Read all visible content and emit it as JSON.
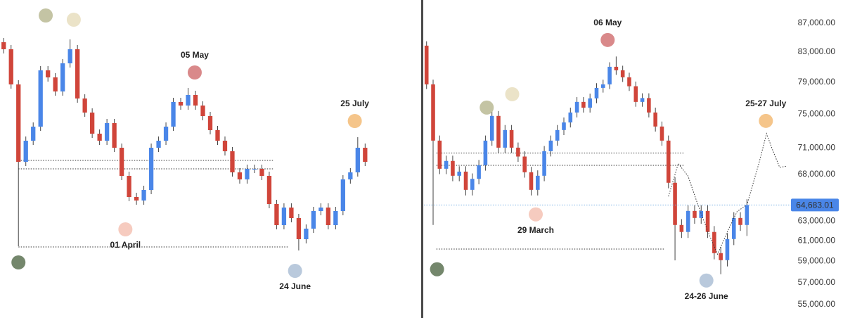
{
  "chart_data": [
    {
      "type": "candlestick",
      "xlim": [
        -0.5,
        56.5
      ],
      "ylim": [
        0,
        452
      ],
      "log_scale": false,
      "up_color": "#4a86e8",
      "down_color": "#d0453a",
      "open": [
        392,
        382,
        332,
        222,
        252,
        272,
        352,
        342,
        322,
        362,
        382,
        312,
        292,
        262,
        252,
        277,
        242,
        202,
        172,
        167,
        182,
        242,
        252,
        272,
        307,
        302,
        317,
        302,
        287,
        267,
        252,
        237,
        207,
        197,
        212,
        212,
        202,
        162,
        132,
        157,
        142,
        112,
        127,
        152,
        157,
        132,
        152,
        197,
        207,
        242
      ],
      "high": [
        398,
        388,
        338,
        258,
        278,
        358,
        358,
        348,
        368,
        396,
        388,
        318,
        298,
        268,
        283,
        283,
        248,
        208,
        178,
        188,
        248,
        258,
        278,
        313,
        313,
        327,
        323,
        308,
        293,
        273,
        258,
        243,
        213,
        218,
        218,
        218,
        208,
        168,
        163,
        163,
        148,
        133,
        158,
        163,
        163,
        158,
        203,
        213,
        257,
        248
      ],
      "low": [
        376,
        326,
        102,
        216,
        246,
        266,
        336,
        316,
        316,
        356,
        306,
        286,
        256,
        246,
        246,
        236,
        196,
        166,
        161,
        161,
        176,
        236,
        246,
        266,
        296,
        296,
        296,
        281,
        261,
        246,
        231,
        201,
        191,
        191,
        206,
        196,
        156,
        126,
        126,
        136,
        96,
        106,
        121,
        146,
        126,
        126,
        146,
        191,
        201,
        216
      ],
      "close": [
        382,
        332,
        222,
        252,
        272,
        352,
        342,
        322,
        362,
        382,
        312,
        292,
        262,
        252,
        277,
        242,
        202,
        172,
        167,
        182,
        242,
        252,
        272,
        307,
        302,
        317,
        302,
        287,
        267,
        252,
        237,
        207,
        197,
        212,
        212,
        202,
        162,
        132,
        157,
        142,
        112,
        127,
        152,
        157,
        132,
        152,
        197,
        207,
        242,
        222
      ],
      "levels": [
        {
          "value": 224,
          "from": 2,
          "to": 36.5
        },
        {
          "value": 212,
          "from": 2,
          "to": 36.5
        },
        {
          "value": 101,
          "from": 2,
          "to": 38.6
        }
      ],
      "annotations": [
        {
          "x": 5.7,
          "y": 430,
          "color": "#c4c4a4"
        },
        {
          "x": 9.5,
          "y": 424,
          "color": "#ebe3c8"
        },
        {
          "x": 2,
          "y": 79,
          "color": "#74876c"
        },
        {
          "label": "05 May",
          "x": 25.9,
          "y": 349,
          "color": "#d9898a"
        },
        {
          "label": "01 April",
          "x": 16.5,
          "y": 126,
          "color": "#f6cbbf"
        },
        {
          "label": "24 June",
          "x": 39.5,
          "y": 67,
          "color": "#b9c9dc"
        },
        {
          "label": "25 July",
          "x": 47.6,
          "y": 280,
          "color": "#f5c58a"
        }
      ]
    },
    {
      "type": "candlestick",
      "xlim": [
        -0.4,
        55.2
      ],
      "ylim": [
        53800,
        90350
      ],
      "log_scale": true,
      "up_color": "#4a86e8",
      "down_color": "#d0453a",
      "yticks": [
        {
          "value": 87000,
          "label": "87,000.00"
        },
        {
          "value": 83000,
          "label": "83,000.00"
        },
        {
          "value": 79000,
          "label": "79,000.00"
        },
        {
          "value": 75000,
          "label": "75,000.00"
        },
        {
          "value": 71000,
          "label": "71,000.00"
        },
        {
          "value": 68000,
          "label": "68,000.00"
        },
        {
          "value": 63000,
          "label": "63,000.00"
        },
        {
          "value": 61000,
          "label": "61,000.00"
        },
        {
          "value": 59000,
          "label": "59,000.00"
        },
        {
          "value": 57000,
          "label": "57,000.00"
        },
        {
          "value": 55000,
          "label": "55,000.00"
        }
      ],
      "open": [
        83870,
        78740,
        71840,
        68620,
        69500,
        67840,
        68300,
        66300,
        67500,
        69010,
        71840,
        74790,
        71020,
        73090,
        71020,
        70000,
        68230,
        66300,
        67840,
        70610,
        71840,
        73090,
        74000,
        75210,
        76520,
        75800,
        76960,
        78290,
        78740,
        81030,
        80570,
        79650,
        78500,
        76520,
        77000,
        75210,
        73510,
        71840,
        67070,
        62610,
        61900,
        64060,
        63330,
        64060,
        61900,
        59800,
        59120,
        61190,
        63330,
        62610
      ],
      "high": [
        84470,
        79340,
        72440,
        70100,
        70100,
        68900,
        68900,
        68100,
        69610,
        72440,
        75390,
        75390,
        73690,
        73690,
        71620,
        70600,
        68830,
        68440,
        71210,
        72440,
        73690,
        74600,
        75810,
        77120,
        77120,
        77560,
        78890,
        79340,
        81630,
        82400,
        81170,
        80250,
        79100,
        77600,
        77600,
        75810,
        74110,
        72440,
        67670,
        63210,
        64660,
        64660,
        64660,
        64660,
        62500,
        60400,
        61790,
        63930,
        63930,
        65300
      ],
      "low": [
        78140,
        62610,
        68020,
        68020,
        67240,
        67240,
        65700,
        65700,
        66900,
        68410,
        71240,
        70420,
        70420,
        70420,
        69400,
        67630,
        65700,
        65700,
        67240,
        70010,
        71240,
        72490,
        73400,
        74610,
        75200,
        75200,
        76360,
        77690,
        78140,
        79970,
        79050,
        77900,
        75920,
        75920,
        74610,
        72910,
        71240,
        66470,
        59100,
        61300,
        61300,
        62730,
        62730,
        61300,
        59200,
        57780,
        58520,
        60590,
        62010,
        61500
      ],
      "close": [
        78740,
        71840,
        68620,
        69500,
        67840,
        68300,
        66300,
        67500,
        69010,
        71840,
        74790,
        71020,
        73090,
        71020,
        70000,
        68230,
        66300,
        67840,
        70610,
        71840,
        73090,
        74000,
        75210,
        76520,
        75800,
        76960,
        78290,
        78740,
        81030,
        80570,
        79650,
        78500,
        76520,
        77000,
        75210,
        73510,
        71840,
        67070,
        62610,
        61900,
        64060,
        63330,
        64060,
        61900,
        59800,
        59120,
        61190,
        63330,
        62610,
        64683.01
      ],
      "price_label": {
        "value": 64683.01,
        "label": "64,683.01"
      },
      "projection": {
        "x": [
          37,
          38.5,
          40,
          41.5,
          43,
          44.5,
          46,
          47.5,
          49,
          50.9,
          52,
          53,
          54,
          55
        ],
        "y": [
          65600,
          69200,
          67800,
          64700,
          62000,
          59700,
          61900,
          64000,
          64700,
          69410,
          72670,
          70610,
          68780,
          68900
        ]
      },
      "levels": [
        {
          "value": 70400,
          "from": 1.5,
          "to": 39.5
        },
        {
          "value": 69000,
          "from": 1.5,
          "to": 39.5
        },
        {
          "value": 60200,
          "from": 1.5,
          "to": 36.5
        }
      ],
      "annotations": [
        {
          "x": 9.2,
          "y": 75820,
          "color": "#c4c4a4"
        },
        {
          "x": 13.1,
          "y": 77490,
          "color": "#ebe3c8"
        },
        {
          "x": 1.6,
          "y": 58250,
          "color": "#74876c"
        },
        {
          "label": "06 May",
          "x": 27.7,
          "y": 84650,
          "color": "#d9898a"
        },
        {
          "label": "29 March",
          "x": 16.7,
          "y": 63700,
          "color": "#f6cbbf"
        },
        {
          "label": "24-26 June",
          "x": 42.8,
          "y": 57190,
          "color": "#b9c9dc"
        },
        {
          "label": "25-27 July",
          "x": 51.9,
          "y": 74190,
          "color": "#f5c58a"
        }
      ]
    }
  ]
}
